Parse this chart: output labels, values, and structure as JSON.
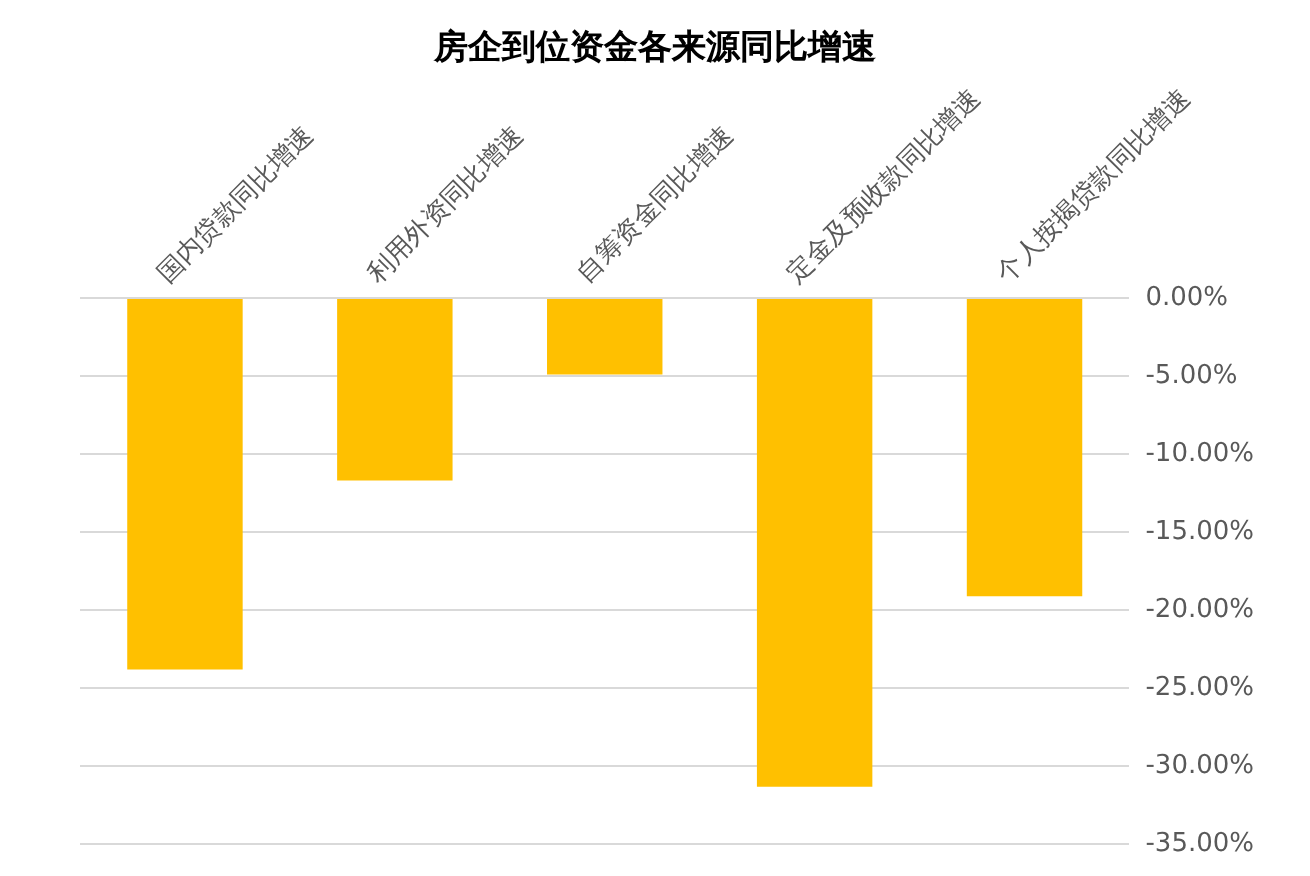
{
  "chart_data": {
    "type": "bar",
    "title": "房企到位资金各来源同比增速",
    "categories": [
      "国内贷款同比增速",
      "利用外资同比增速",
      "自筹资金同比增速",
      "定金及预收款同比增速",
      "个人按揭贷款同比增速"
    ],
    "values": [
      -23.8,
      -11.7,
      -4.9,
      -31.3,
      -19.1
    ],
    "color": "#ffc000",
    "ylim": [
      -35,
      0
    ],
    "yticks": [
      {
        "value": 0,
        "label": "0.00%"
      },
      {
        "value": -5,
        "label": "-5.00%"
      },
      {
        "value": -10,
        "label": "-10.00%"
      },
      {
        "value": -15,
        "label": "-15.00%"
      },
      {
        "value": -20,
        "label": "-20.00%"
      },
      {
        "value": -25,
        "label": "-25.00%"
      },
      {
        "value": -30,
        "label": "-30.00%"
      },
      {
        "value": -35,
        "label": "-35.00%"
      }
    ],
    "grid": "y",
    "legend": false
  }
}
